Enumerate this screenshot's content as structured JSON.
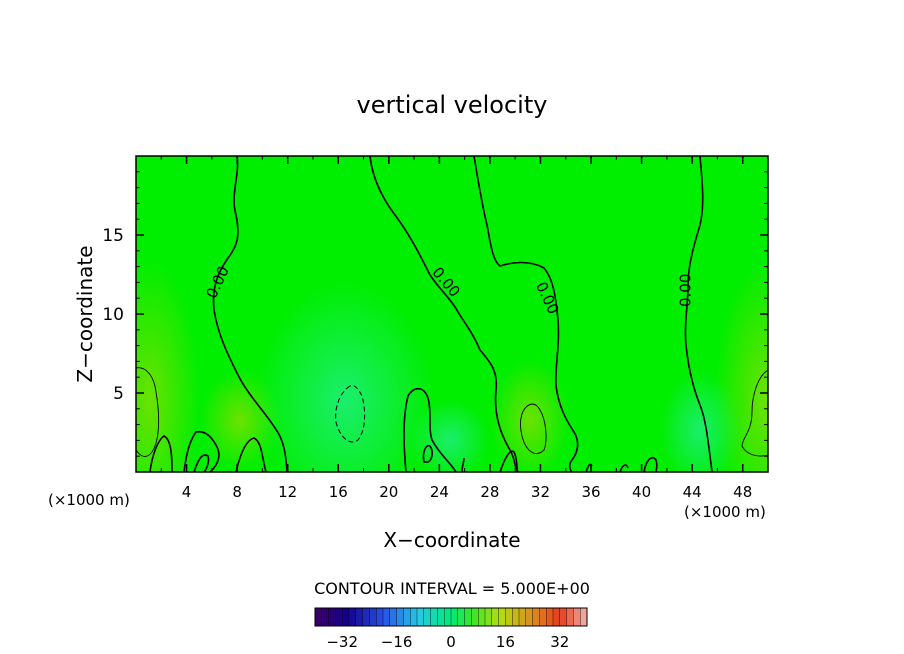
{
  "chart_data": {
    "type": "heatmap",
    "title": "vertical velocity",
    "xlabel": "X−coordinate",
    "ylabel": "Z−coordinate",
    "x_unit_left": "(×1000 m)",
    "x_unit_right": "(×1000 m)",
    "xlim": [
      0,
      50
    ],
    "ylim": [
      0,
      20
    ],
    "x_ticks": [
      4,
      8,
      12,
      16,
      20,
      24,
      28,
      32,
      36,
      40,
      44,
      48
    ],
    "y_ticks": [
      5,
      10,
      15
    ],
    "contour_labels": [
      {
        "text": "0.00",
        "x": 6.5,
        "y": 12
      },
      {
        "text": "0.00",
        "x": 24.5,
        "y": 12
      },
      {
        "text": "0.00",
        "x": 32.5,
        "y": 11
      },
      {
        "text": "0.00",
        "x": 43.5,
        "y": 11.5
      }
    ],
    "contour_interval_text": "CONTOUR INTERVAL = 5.000E+00",
    "colorbar": {
      "min": -40,
      "max": 40,
      "ticks": [
        -32,
        -16,
        0,
        16,
        32
      ],
      "tick_labels": [
        "−32",
        "−16",
        "0",
        "16",
        "32"
      ]
    },
    "field_color": "#00ee00",
    "contour_color": "#000000"
  }
}
